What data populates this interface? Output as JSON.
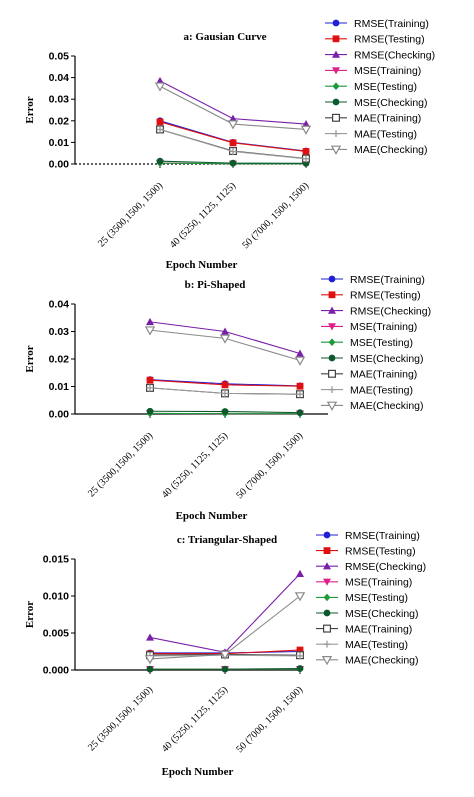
{
  "chart_data": [
    {
      "type": "line",
      "title": "a: Gausian Curve",
      "xlabel": "Epoch Number",
      "ylabel": "Error",
      "categories": [
        "25 (3500,1500, 1500)",
        "40 (5250, 1125, 1125)",
        "50 (7000, 1500, 1500)"
      ],
      "ylim": [
        0,
        0.05
      ],
      "yticks": [
        "0.00",
        "0.01",
        "0.02",
        "0.03",
        "0.04",
        "0.05"
      ],
      "yticks_values": [
        0,
        0.01,
        0.02,
        0.03,
        0.04,
        0.05
      ],
      "zero_line": "dotted",
      "legend": "right",
      "series": [
        {
          "name": "RMSE(Training)",
          "values": [
            0.02,
            0.01,
            0.006
          ],
          "color": "#1f1fd6",
          "marker": "circle"
        },
        {
          "name": "RMSE(Testing)",
          "values": [
            0.0195,
            0.0098,
            0.0058
          ],
          "color": "#e01010",
          "marker": "square"
        },
        {
          "name": "RMSE(Checking)",
          "values": [
            0.0385,
            0.021,
            0.0185
          ],
          "color": "#7a1fa8",
          "marker": "triangle-up"
        },
        {
          "name": "MSE(Training)",
          "values": [
            0.0004,
            0.0001,
            0.0001
          ],
          "color": "#e0208a",
          "marker": "triangle-down"
        },
        {
          "name": "MSE(Testing)",
          "values": [
            0.0004,
            0.0001,
            0.0001
          ],
          "color": "#1a9a3a",
          "marker": "diamond"
        },
        {
          "name": "MSE(Checking)",
          "values": [
            0.0013,
            0.0004,
            0.0003
          ],
          "color": "#0c5a2c",
          "marker": "circle"
        },
        {
          "name": "MAE(Training)",
          "values": [
            0.016,
            0.006,
            0.0025
          ],
          "color": "#444444",
          "marker": "square-open"
        },
        {
          "name": "MAE(Testing)",
          "values": [
            0.016,
            0.0058,
            0.0024
          ],
          "color": "#9a9a9a",
          "marker": "cross"
        },
        {
          "name": "MAE(Checking)",
          "values": [
            0.036,
            0.0185,
            0.016
          ],
          "color": "#8a8a8a",
          "marker": "triangle-down-open"
        }
      ]
    },
    {
      "type": "line",
      "title": "b: Pi-Shaped",
      "xlabel": "Epoch Number",
      "ylabel": "Error",
      "categories": [
        "25 (3500,1500, 1500)",
        "40 (5250, 1125, 1125)",
        "50 (7000, 1500, 1500)"
      ],
      "ylim": [
        0,
        0.04
      ],
      "yticks": [
        "0.00",
        "0.01",
        "0.02",
        "0.03",
        "0.04"
      ],
      "yticks_values": [
        0,
        0.01,
        0.02,
        0.03,
        0.04
      ],
      "zero_line": "none",
      "legend": "right",
      "series": [
        {
          "name": "RMSE(Training)",
          "values": [
            0.0125,
            0.011,
            0.0102
          ],
          "color": "#1f1fd6",
          "marker": "circle"
        },
        {
          "name": "RMSE(Testing)",
          "values": [
            0.0123,
            0.0106,
            0.0101
          ],
          "color": "#e01010",
          "marker": "square"
        },
        {
          "name": "RMSE(Checking)",
          "values": [
            0.0335,
            0.03,
            0.022
          ],
          "color": "#7a1fa8",
          "marker": "triangle-up"
        },
        {
          "name": "MSE(Training)",
          "values": [
            0.0002,
            0.0001,
            0.0001
          ],
          "color": "#e0208a",
          "marker": "triangle-down"
        },
        {
          "name": "MSE(Testing)",
          "values": [
            0.0002,
            0.0001,
            0.0001
          ],
          "color": "#1a9a3a",
          "marker": "diamond"
        },
        {
          "name": "MSE(Checking)",
          "values": [
            0.001,
            0.0009,
            0.0005
          ],
          "color": "#0c5a2c",
          "marker": "circle"
        },
        {
          "name": "MAE(Training)",
          "values": [
            0.0095,
            0.0075,
            0.0072
          ],
          "color": "#444444",
          "marker": "square-open"
        },
        {
          "name": "MAE(Testing)",
          "values": [
            0.0095,
            0.0075,
            0.0072
          ],
          "color": "#9a9a9a",
          "marker": "cross"
        },
        {
          "name": "MAE(Checking)",
          "values": [
            0.0305,
            0.0275,
            0.0195
          ],
          "color": "#8a8a8a",
          "marker": "triangle-down-open"
        }
      ]
    },
    {
      "type": "line",
      "title": "c: Triangular-Shaped",
      "xlabel": "Epoch Number",
      "ylabel": "Error",
      "categories": [
        "25 (3500,1500, 1500)",
        "40 (5250, 1125, 1125)",
        "50 (7000, 1500, 1500)"
      ],
      "ylim": [
        0,
        0.015
      ],
      "yticks": [
        "0.000",
        "0.005",
        "0.010",
        "0.015"
      ],
      "yticks_values": [
        0,
        0.005,
        0.01,
        0.015
      ],
      "zero_line": "none",
      "legend": "right",
      "series": [
        {
          "name": "RMSE(Training)",
          "values": [
            0.0023,
            0.0023,
            0.0025
          ],
          "color": "#1f1fd6",
          "marker": "circle"
        },
        {
          "name": "RMSE(Testing)",
          "values": [
            0.0022,
            0.0022,
            0.0027
          ],
          "color": "#e01010",
          "marker": "square"
        },
        {
          "name": "RMSE(Checking)",
          "values": [
            0.0044,
            0.0024,
            0.013
          ],
          "color": "#7a1fa8",
          "marker": "triangle-up"
        },
        {
          "name": "MSE(Training)",
          "values": [
            0.0001,
            0.0001,
            0.0001
          ],
          "color": "#e0208a",
          "marker": "triangle-down"
        },
        {
          "name": "MSE(Testing)",
          "values": [
            0.0001,
            0.0001,
            0.0001
          ],
          "color": "#1a9a3a",
          "marker": "diamond"
        },
        {
          "name": "MSE(Checking)",
          "values": [
            0.0001,
            0.0001,
            0.0002
          ],
          "color": "#0c5a2c",
          "marker": "circle"
        },
        {
          "name": "MAE(Training)",
          "values": [
            0.002,
            0.0021,
            0.002
          ],
          "color": "#444444",
          "marker": "square-open"
        },
        {
          "name": "MAE(Testing)",
          "values": [
            0.0019,
            0.002,
            0.0019
          ],
          "color": "#9a9a9a",
          "marker": "cross"
        },
        {
          "name": "MAE(Checking)",
          "values": [
            0.0015,
            0.0021,
            0.01
          ],
          "color": "#8a8a8a",
          "marker": "triangle-down-open"
        }
      ]
    }
  ]
}
